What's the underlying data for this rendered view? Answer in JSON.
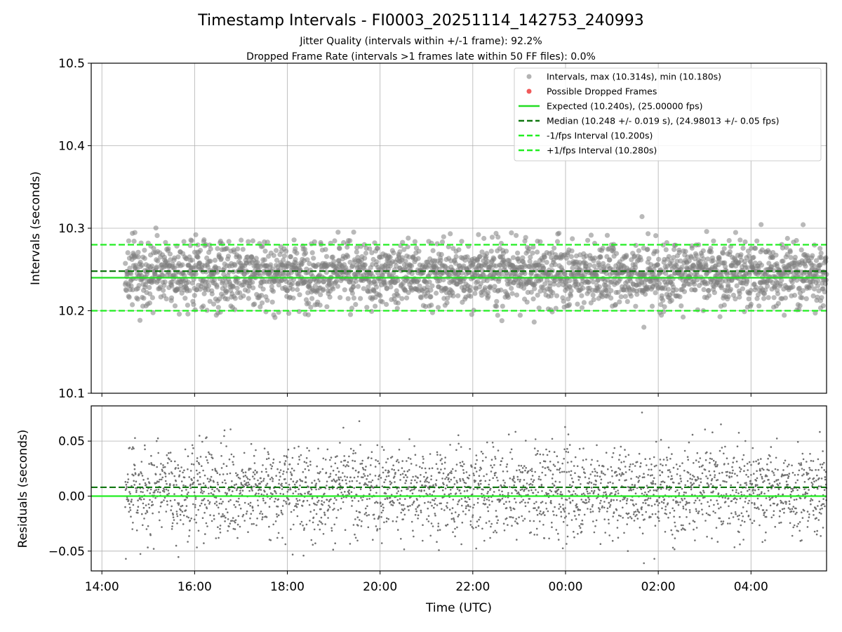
{
  "chart_data": {
    "type": "scatter",
    "title": "Timestamp Intervals - FI0003_20251114_142753_240993",
    "subtitle_lines": [
      "Jitter Quality (intervals within +/-1 frame): 92.2%",
      "Dropped Frame Rate (intervals >1 frames late within 50 FF files): 0.0%"
    ],
    "xlabel": "Time (UTC)",
    "x_range_hours": [
      13.77,
      29.63
    ],
    "x_tick_hours": [
      14,
      16,
      18,
      20,
      22,
      24,
      26,
      28
    ],
    "x_tick_labels": [
      "14:00",
      "16:00",
      "18:00",
      "20:00",
      "22:00",
      "00:00",
      "02:00",
      "04:00"
    ],
    "data_time_span_hours": [
      14.5,
      29.63
    ],
    "grid": true,
    "panels": [
      {
        "name": "intervals",
        "ylabel": "Intervals (seconds)",
        "ylim": [
          10.1,
          10.5
        ],
        "y_ticks": [
          10.1,
          10.2,
          10.3,
          10.4,
          10.5
        ],
        "y_tick_labels": [
          "10.1",
          "10.2",
          "10.3",
          "10.4",
          "10.5"
        ],
        "series": [
          {
            "name": "Intervals, max (10.314s), min (10.180s)",
            "kind": "scatter",
            "color": "#808080",
            "center": 10.245,
            "spread": 0.019,
            "max": 10.314,
            "min": 10.18
          },
          {
            "name": "Possible Dropped Frames",
            "kind": "scatter",
            "color": "#f05a5a",
            "values": []
          },
          {
            "name": "Expected (10.240s), (25.00000 fps)",
            "kind": "hline",
            "y": 10.24,
            "color": "#22dd22",
            "style": "solid"
          },
          {
            "name": "Median (10.248 +/- 0.019 s), (24.98013 +/- 0.05 fps)",
            "kind": "hline",
            "y": 10.248,
            "color": "#117711",
            "style": "dashed"
          },
          {
            "name": "-1/fps Interval (10.200s)",
            "kind": "hline",
            "y": 10.2,
            "color": "#22ee22",
            "style": "dashed"
          },
          {
            "name": "+1/fps Interval (10.280s)",
            "kind": "hline",
            "y": 10.28,
            "color": "#22ee22",
            "style": "dashed"
          }
        ],
        "legend_position": "top-right"
      },
      {
        "name": "residuals",
        "ylabel": "Residuals (seconds)",
        "ylim": [
          -0.068,
          0.082
        ],
        "y_ticks": [
          -0.05,
          0.0,
          0.05
        ],
        "y_tick_labels": [
          "−0.05",
          "0.00",
          "0.05"
        ],
        "series": [
          {
            "name": "residuals",
            "kind": "scatter",
            "color": "#707070",
            "center": 0.005,
            "spread": 0.02,
            "max": 0.076,
            "min": -0.061
          },
          {
            "name": "expected",
            "kind": "hline",
            "y": 0.0,
            "color": "#22ee22",
            "style": "solid"
          },
          {
            "name": "median",
            "kind": "hline",
            "y": 0.008,
            "color": "#117711",
            "style": "dashed"
          }
        ]
      }
    ]
  }
}
